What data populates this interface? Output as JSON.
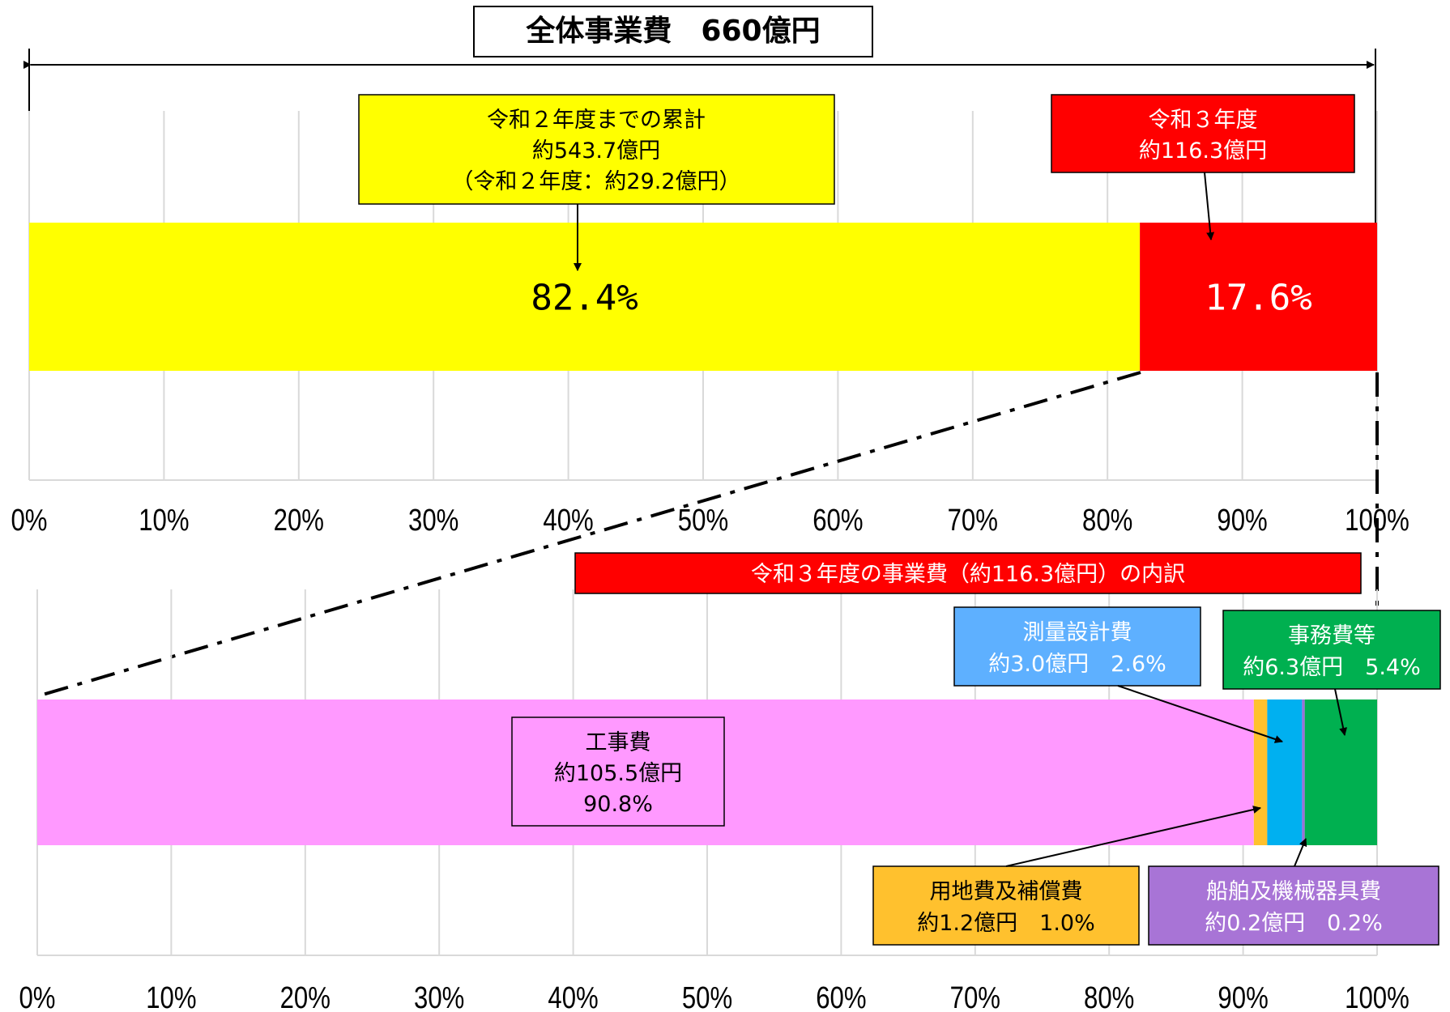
{
  "header": {
    "title": "全体事業費　660億円"
  },
  "chart_data": [
    {
      "type": "bar",
      "orientation": "horizontal-stacked",
      "xlim": [
        0,
        100
      ],
      "ticks": [
        "0%",
        "10%",
        "20%",
        "30%",
        "40%",
        "50%",
        "60%",
        "70%",
        "80%",
        "90%",
        "100%"
      ],
      "grid": true,
      "segments": [
        {
          "name": "令和２年度までの累計",
          "value": 82.4,
          "label": "82.4%",
          "color": "#ffff00"
        },
        {
          "name": "令和３年度",
          "value": 17.6,
          "label": "17.6%",
          "color": "#ff0000"
        }
      ],
      "annotations": [
        {
          "lines": [
            "令和２年度までの累計",
            "約543.7億円",
            "（令和２年度：約29.2億円）"
          ],
          "bg": "#ffff00",
          "color": "#000000"
        },
        {
          "lines": [
            "令和３年度",
            "約116.3億円"
          ],
          "bg": "#ff0000",
          "color": "#ffffff"
        }
      ]
    },
    {
      "type": "bar",
      "orientation": "horizontal-stacked",
      "title": "令和３年度の事業費（約116.3億円）の内訳",
      "xlim": [
        0,
        100
      ],
      "ticks": [
        "0%",
        "10%",
        "20%",
        "30%",
        "40%",
        "50%",
        "60%",
        "70%",
        "80%",
        "90%",
        "100%"
      ],
      "grid": true,
      "segments": [
        {
          "name": "工事費",
          "value": 90.8,
          "color": "#ff99ff"
        },
        {
          "name": "用地費及補償費",
          "value": 1.0,
          "color": "#ffc12e"
        },
        {
          "name": "測量設計費",
          "value": 2.6,
          "color": "#00b0f0"
        },
        {
          "name": "船舶及機械器具費",
          "value": 0.2,
          "color": "#9c6fd6"
        },
        {
          "name": "事務費等",
          "value": 5.4,
          "color": "#00b050"
        }
      ],
      "annotations": [
        {
          "lines": [
            "工事費",
            "約105.5億円",
            "90.8%"
          ],
          "bg": "#ff99ff",
          "color": "#000000"
        },
        {
          "lines": [
            "測量設計費",
            "約3.0億円　2.6%"
          ],
          "bg": "#5eb0ff",
          "color": "#ffffff"
        },
        {
          "lines": [
            "事務費等",
            "約6.3億円　5.4%"
          ],
          "bg": "#00b050",
          "color": "#ffffff"
        },
        {
          "lines": [
            "用地費及補償費",
            "約1.2億円　1.0%"
          ],
          "bg": "#ffc12e",
          "color": "#000000"
        },
        {
          "lines": [
            "船舶及機械器具費",
            "約0.2億円　0.2%"
          ],
          "bg": "#a874d6",
          "color": "#ffffff"
        }
      ]
    }
  ]
}
